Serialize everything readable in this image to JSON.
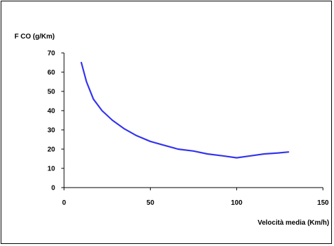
{
  "chart_data": {
    "type": "line",
    "ylabel": "F CO (g/Km)",
    "xlabel": "Velocità media (Km/h)",
    "xlim": [
      0,
      150
    ],
    "ylim": [
      0,
      70
    ],
    "x_ticks": [
      0,
      50,
      100,
      150
    ],
    "y_ticks": [
      0,
      10,
      20,
      30,
      40,
      50,
      60,
      70
    ],
    "grid": false,
    "series": [
      {
        "color": "#3333ee",
        "x": [
          10,
          13,
          17,
          22,
          28,
          35,
          42,
          50,
          58,
          66,
          75,
          83,
          92,
          100,
          108,
          116,
          124,
          130
        ],
        "y": [
          65,
          55,
          46,
          40,
          35,
          30.5,
          27,
          24,
          22,
          20,
          19,
          17.5,
          16.5,
          15.5,
          16.5,
          17.5,
          18,
          18.5
        ]
      }
    ]
  }
}
